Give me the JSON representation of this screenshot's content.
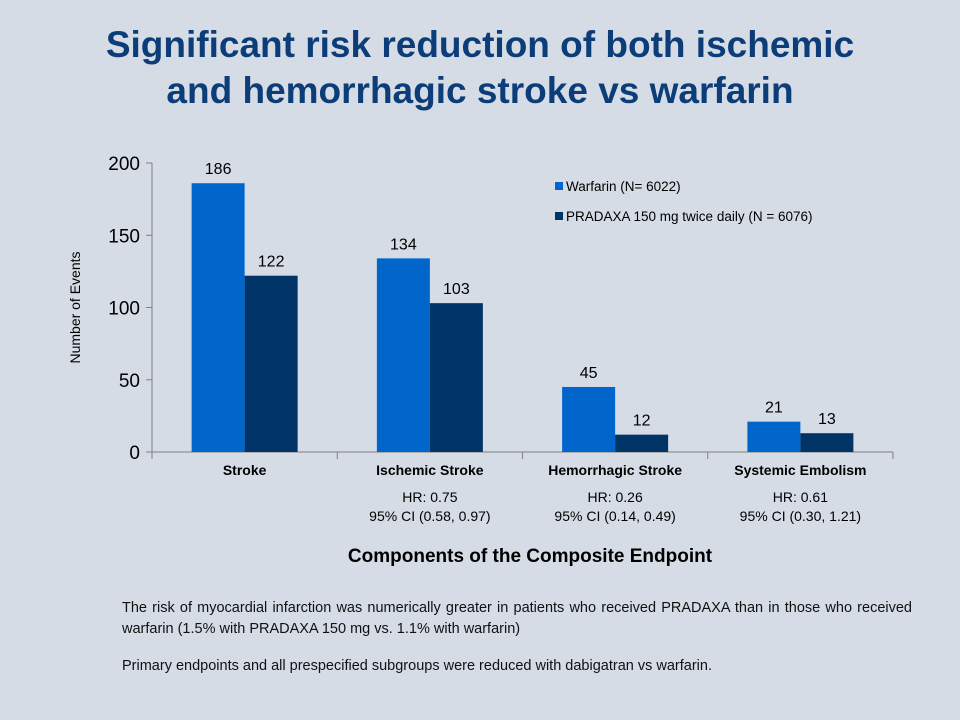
{
  "slide": {
    "title_line1": "Significant risk reduction of both ischemic",
    "title_line2": "and hemorrhagic stroke vs warfarin"
  },
  "chart_data": {
    "type": "bar",
    "categories": [
      "Stroke",
      "Ischemic Stroke",
      "Hemorrhagic Stroke",
      "Systemic Embolism"
    ],
    "series": [
      {
        "name": "Warfarin (N= 6022)",
        "values": [
          186,
          134,
          45,
          21
        ],
        "color": "#0066cc"
      },
      {
        "name": "PRADAXA 150 mg twice daily (N = 6076)",
        "values": [
          122,
          103,
          12,
          13
        ],
        "color": "#003366"
      }
    ],
    "xlabel": "Components of the Composite Endpoint",
    "ylabel": "Number of Events",
    "ylim": [
      0,
      200
    ],
    "yticks": [
      0,
      50,
      100,
      150,
      200
    ],
    "grid": false,
    "legend": "top-right",
    "category_notes": [
      null,
      [
        "HR: 0.75",
        "95% CI (0.58, 0.97)"
      ],
      [
        "HR: 0.26",
        "95% CI (0.14, 0.49)"
      ],
      [
        "HR: 0.61",
        "95% CI (0.30, 1.21)"
      ]
    ]
  },
  "footnotes": {
    "note1": "The risk of myocardial infarction was numerically greater in patients who received PRADAXA than in those who received warfarin (1.5% with PRADAXA 150 mg vs. 1.1% with warfarin)",
    "note2": "Primary endpoints and all prespecified subgroups were reduced with dabigatran vs warfarin."
  }
}
